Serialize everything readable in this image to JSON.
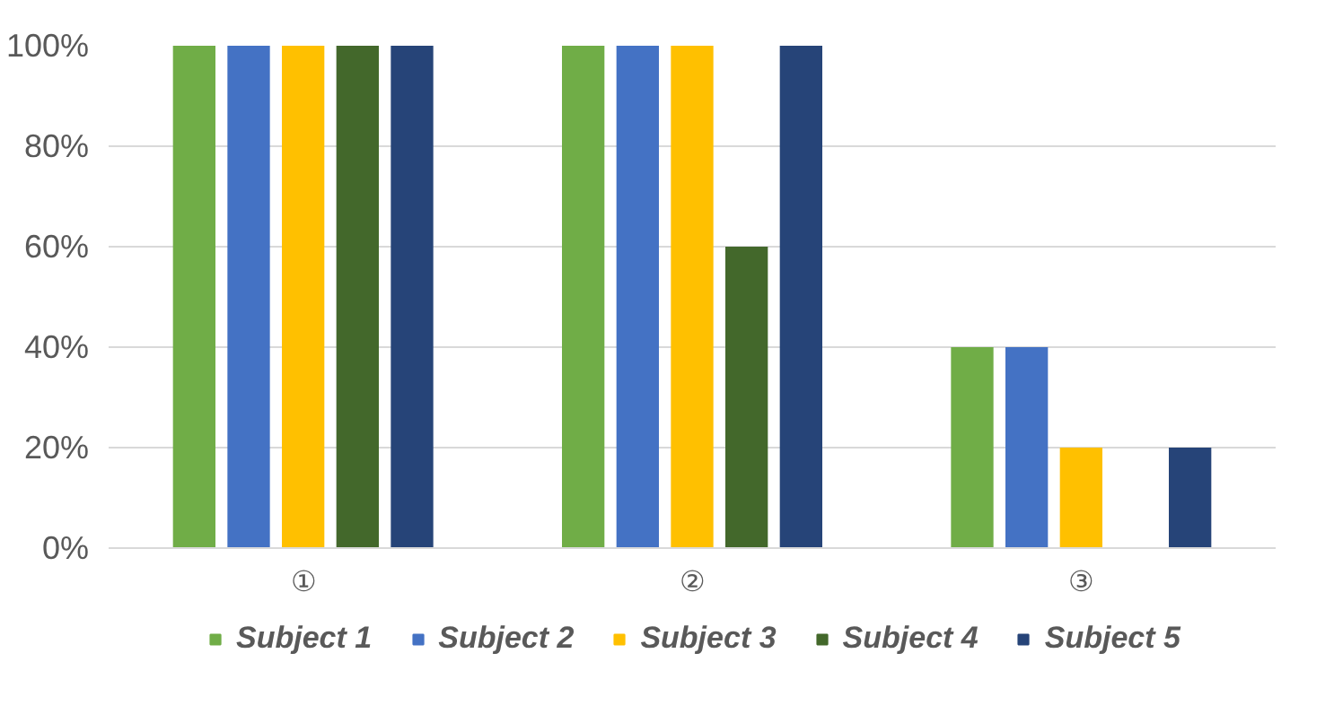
{
  "chart_data": {
    "type": "bar",
    "categories": [
      "①",
      "②",
      "③"
    ],
    "series": [
      {
        "name": "Subject 1",
        "color": "#70ad47",
        "values": [
          100,
          100,
          40
        ]
      },
      {
        "name": "Subject 2",
        "color": "#4472c4",
        "values": [
          100,
          100,
          40
        ]
      },
      {
        "name": "Subject 3",
        "color": "#ffc000",
        "values": [
          100,
          100,
          20
        ]
      },
      {
        "name": "Subject 4",
        "color": "#43682b",
        "values": [
          100,
          60,
          0
        ]
      },
      {
        "name": "Subject 5",
        "color": "#264478",
        "values": [
          100,
          100,
          20
        ]
      }
    ],
    "ylim": [
      0,
      100
    ],
    "yticks": [
      {
        "value": 0,
        "label": "0%"
      },
      {
        "value": 20,
        "label": "20%"
      },
      {
        "value": 40,
        "label": "40%"
      },
      {
        "value": 60,
        "label": "60%"
      },
      {
        "value": 80,
        "label": "80%"
      },
      {
        "value": 100,
        "label": "100%"
      }
    ],
    "grid": "y",
    "legend": "bottom"
  }
}
